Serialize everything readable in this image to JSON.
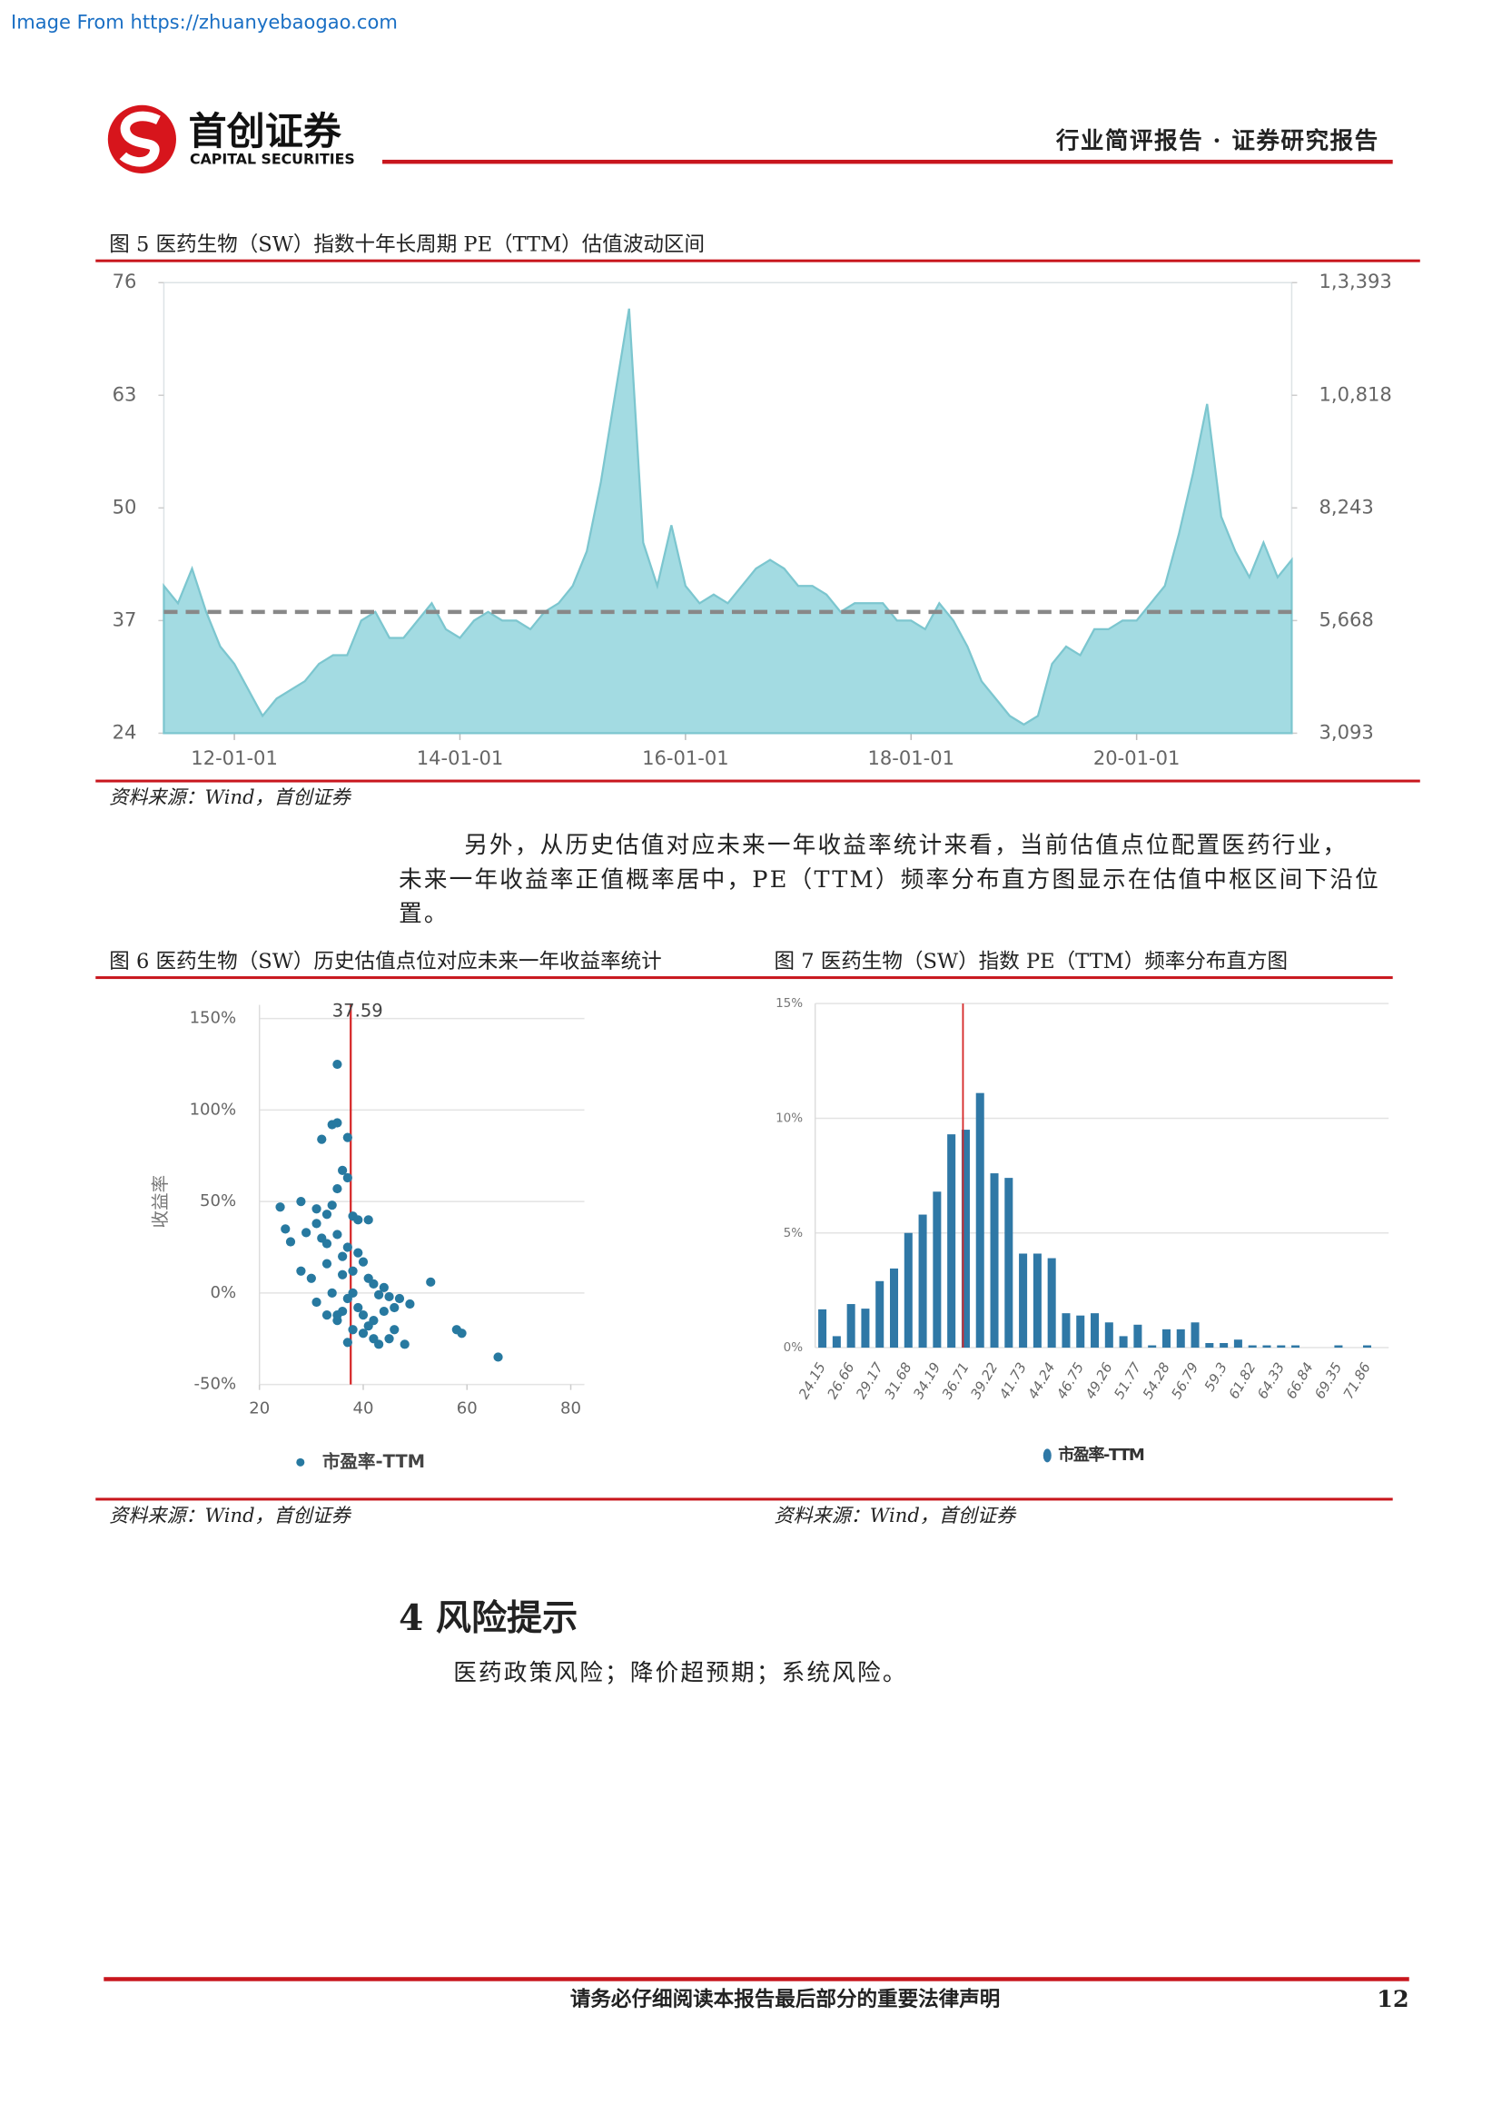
{
  "header": {
    "source": "Image From https://zhuanyebaogao.com",
    "logo_cn": "首创证券",
    "logo_en": "CAPITAL SECURITIES",
    "report_type": "行业简评报告 · 证券研究报告"
  },
  "paragraph": [
    "另外，从历史估值对应未来一年收益率统计来看，当前估值点位配置医药行业，",
    "未来一年收益率正值概率居中，PE（TTM）频率分布直方图显示在估值中枢区间下沿位",
    "置。"
  ],
  "section": {
    "title": "4 风险提示",
    "text": "医药政策风险；降价超预期；系统风险。"
  },
  "footer": {
    "notice": "请务必仔细阅读本报告最后部分的重要法律声明",
    "page": "12"
  },
  "chart_data": [
    {
      "type": "area",
      "title": "图 5 医药生物（SW）指数十年长周期 PE（TTM）估值波动区间",
      "source": "资料来源：Wind，首创证券",
      "x": [
        2011.375,
        2011.5,
        2011.625,
        2011.75,
        2011.875,
        2012,
        2012.125,
        2012.25,
        2012.375,
        2012.5,
        2012.625,
        2012.75,
        2012.875,
        2013,
        2013.125,
        2013.25,
        2013.375,
        2013.5,
        2013.625,
        2013.75,
        2013.875,
        2014,
        2014.125,
        2014.25,
        2014.375,
        2014.5,
        2014.625,
        2014.75,
        2014.875,
        2015,
        2015.125,
        2015.25,
        2015.375,
        2015.5,
        2015.625,
        2015.75,
        2015.875,
        2016,
        2016.125,
        2016.25,
        2016.375,
        2016.5,
        2016.625,
        2016.75,
        2016.875,
        2017,
        2017.125,
        2017.25,
        2017.375,
        2017.5,
        2017.625,
        2017.75,
        2017.875,
        2018,
        2018.125,
        2018.25,
        2018.375,
        2018.5,
        2018.625,
        2018.75,
        2018.875,
        2019,
        2019.125,
        2019.25,
        2019.375,
        2019.5,
        2019.625,
        2019.75,
        2019.875,
        2020,
        2020.125,
        2020.25,
        2020.375,
        2020.5,
        2020.625,
        2020.75,
        2020.875,
        2021,
        2021.125,
        2021.25,
        2021.375
      ],
      "series": [
        {
          "color": "#a3dbe2",
          "values": [
            41,
            39,
            43,
            38,
            34,
            32,
            29,
            26,
            28,
            29,
            30,
            32,
            33,
            33,
            37,
            38,
            35,
            35,
            37,
            39,
            36,
            35,
            37,
            38,
            37,
            37,
            36,
            38,
            39,
            41,
            45,
            53,
            63,
            73,
            46,
            41,
            48,
            41,
            39,
            40,
            39,
            41,
            43,
            44,
            43,
            41,
            41,
            40,
            38,
            39,
            39,
            39,
            37,
            37,
            36,
            39,
            37,
            34,
            30,
            28,
            26,
            25,
            26,
            32,
            34,
            33,
            36,
            36,
            37,
            37,
            39,
            41,
            47,
            54,
            62,
            49,
            45,
            42,
            46,
            42,
            44
          ]
        }
      ],
      "mean_line": 38,
      "mean_color": "#888888",
      "xlim": [
        2011.375,
        2021.375
      ],
      "xticks": [
        {
          "value": 2012,
          "label": "12-01-01"
        },
        {
          "value": 2014,
          "label": "14-01-01"
        },
        {
          "value": 2016,
          "label": "16-01-01"
        },
        {
          "value": 2018,
          "label": "18-01-01"
        },
        {
          "value": 2020,
          "label": "20-01-01"
        }
      ],
      "ylim": [
        24,
        76
      ],
      "yticks": [
        24,
        37,
        50,
        63,
        76
      ],
      "y2lim": [
        3093,
        13393
      ],
      "y2ticks": [
        {
          "value": 3093,
          "label": "3,093"
        },
        {
          "value": 5668,
          "label": "5,668"
        },
        {
          "value": 8243,
          "label": "8,243"
        },
        {
          "value": 10818,
          "label": "1,0,818"
        },
        {
          "value": 13393,
          "label": "1,3,393"
        }
      ]
    },
    {
      "type": "scatter",
      "title": "图 6 医药生物（SW）历史估值点位对应未来一年收益率统计",
      "source": "资料来源：Wind，首创证券",
      "y_label": "收益率",
      "x": [
        35,
        34,
        35,
        32,
        37,
        36,
        37,
        35,
        24,
        28,
        31,
        33,
        34,
        38,
        39,
        41,
        25,
        26,
        29,
        31,
        32,
        33,
        35,
        36,
        37,
        39,
        40,
        36,
        38,
        41,
        42,
        44,
        43,
        45,
        47,
        49,
        53,
        28,
        30,
        33,
        34,
        37,
        39,
        40,
        36,
        33,
        35,
        38,
        40,
        42,
        43,
        45,
        46,
        48,
        58,
        59,
        66,
        37,
        41,
        44,
        31,
        35,
        38,
        42,
        46
      ],
      "series": [
        {
          "name": "市盈率-TTM",
          "color": "#2779a0",
          "values": [
            125,
            92,
            93,
            84,
            85,
            67,
            63,
            57,
            47,
            50,
            46,
            43,
            48,
            42,
            40,
            40,
            35,
            28,
            33,
            38,
            30,
            27,
            32,
            20,
            25,
            22,
            17,
            10,
            12,
            8,
            5,
            3,
            -1,
            -2,
            -3,
            -6,
            6,
            12,
            8,
            16,
            0,
            -3,
            -8,
            -12,
            -10,
            -12,
            -15,
            -20,
            -22,
            -25,
            -28,
            -25,
            -20,
            -28,
            -20,
            -22,
            -35,
            -27,
            -18,
            -10,
            -5,
            -12,
            0,
            -15,
            -8
          ]
        }
      ],
      "reference_x": 37.59,
      "reference_color": "#d62728",
      "xlim": [
        20,
        80
      ],
      "xticks": [
        20,
        40,
        60,
        80
      ],
      "ylim": [
        -50,
        150
      ],
      "yticks": [
        {
          "value": -50,
          "label": "-50%"
        },
        {
          "value": 0,
          "label": "0%"
        },
        {
          "value": 50,
          "label": "50%"
        },
        {
          "value": 100,
          "label": "100%"
        },
        {
          "value": 150,
          "label": "150%"
        }
      ],
      "grid": true
    },
    {
      "type": "bar",
      "title": "图 7 医药生物（SW）指数 PE（TTM）频率分布直方图",
      "source": "资料来源：Wind，首创证券",
      "categories": [
        "24.15",
        null,
        "26.66",
        null,
        "29.17",
        null,
        "31.68",
        null,
        "34.19",
        null,
        "36.71",
        null,
        "39.22",
        null,
        "41.73",
        null,
        "44.24",
        null,
        "46.75",
        null,
        "49.26",
        null,
        "51.77",
        null,
        "54.28",
        null,
        "56.79",
        null,
        "59.3",
        null,
        "61.82",
        null,
        "64.33",
        null,
        "66.84",
        null,
        "69.35",
        null,
        "71.86",
        null
      ],
      "series": [
        {
          "name": "市盈率-TTM",
          "color": "#2f78a6",
          "values": [
            1.67,
            0.5,
            1.9,
            1.7,
            2.9,
            3.45,
            5,
            5.8,
            6.8,
            9.3,
            9.5,
            11.1,
            7.6,
            7.4,
            4.1,
            4.1,
            3.9,
            1.5,
            1.4,
            1.5,
            1.1,
            0.5,
            1,
            0.1,
            0.8,
            0.8,
            1.1,
            0.2,
            0.2,
            0.35,
            0.1,
            0.1,
            0.1,
            0.1,
            0,
            0,
            0.1,
            0,
            0.1,
            0
          ]
        }
      ],
      "reference_x": 36.71,
      "reference_color": "#d62728",
      "ylim": [
        0,
        15
      ],
      "yticks": [
        {
          "value": 0,
          "label": "0%"
        },
        {
          "value": 5,
          "label": "5%"
        },
        {
          "value": 10,
          "label": "10%"
        },
        {
          "value": 15,
          "label": "15%"
        }
      ],
      "grid": true
    }
  ]
}
